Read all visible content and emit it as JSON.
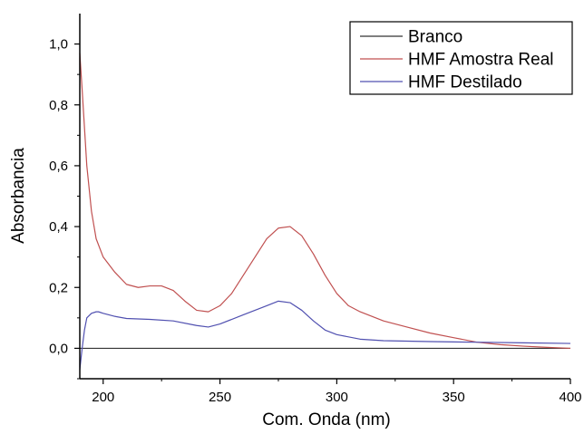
{
  "chart_data": {
    "type": "line",
    "title": "",
    "xlabel": "Com. Onda (nm)",
    "ylabel": "Absorbancia",
    "xlim": [
      190,
      400
    ],
    "ylim": [
      -0.1,
      1.1
    ],
    "x_ticks": [
      200,
      250,
      300,
      350,
      400
    ],
    "x_tick_labels": [
      "200",
      "250",
      "300",
      "350",
      "400"
    ],
    "y_ticks": [
      0.0,
      0.2,
      0.4,
      0.6,
      0.8,
      1.0
    ],
    "y_tick_labels": [
      "0,0",
      "0,2",
      "0,4",
      "0,6",
      "0,8",
      "1,0"
    ],
    "grid": false,
    "legend_position": "top-right",
    "series": [
      {
        "name": "Branco",
        "color": "#333333",
        "x": [
          190,
          200,
          250,
          300,
          350,
          400
        ],
        "y": [
          0.0,
          0.0,
          0.0,
          0.0,
          0.0,
          0.0
        ]
      },
      {
        "name": "HMF Amostra Real",
        "color": "#c05050",
        "x": [
          190,
          191,
          193,
          195,
          197,
          200,
          205,
          210,
          215,
          220,
          225,
          230,
          235,
          240,
          245,
          250,
          255,
          260,
          265,
          270,
          275,
          280,
          285,
          290,
          295,
          300,
          305,
          310,
          320,
          330,
          340,
          350,
          360,
          370,
          380,
          390,
          400
        ],
        "y": [
          0.97,
          0.85,
          0.6,
          0.45,
          0.36,
          0.3,
          0.25,
          0.21,
          0.2,
          0.205,
          0.205,
          0.19,
          0.155,
          0.125,
          0.12,
          0.14,
          0.18,
          0.24,
          0.3,
          0.36,
          0.395,
          0.4,
          0.37,
          0.31,
          0.24,
          0.18,
          0.14,
          0.12,
          0.09,
          0.07,
          0.05,
          0.035,
          0.02,
          0.012,
          0.007,
          0.003,
          0.0
        ]
      },
      {
        "name": "HMF Destilado",
        "color": "#5050b0",
        "x": [
          190,
          191,
          192,
          193,
          195,
          197,
          198,
          200,
          205,
          210,
          220,
          230,
          240,
          245,
          250,
          260,
          270,
          275,
          280,
          285,
          290,
          295,
          300,
          310,
          320,
          340,
          360,
          380,
          400
        ],
        "y": [
          -0.07,
          0.0,
          0.06,
          0.1,
          0.115,
          0.12,
          0.12,
          0.115,
          0.105,
          0.098,
          0.095,
          0.09,
          0.075,
          0.07,
          0.08,
          0.11,
          0.14,
          0.155,
          0.15,
          0.125,
          0.09,
          0.06,
          0.045,
          0.03,
          0.025,
          0.022,
          0.02,
          0.018,
          0.016
        ]
      }
    ]
  }
}
